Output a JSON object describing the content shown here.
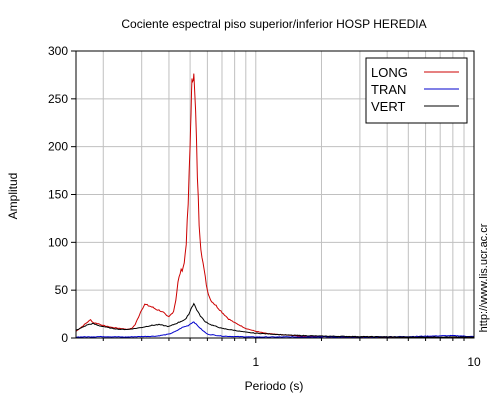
{
  "chart_data": {
    "type": "line",
    "title": "Cociente espectral piso superior/inferior  HOSP HEREDIA",
    "xlabel": "Periodo (s)",
    "ylabel": "Amplitud",
    "side_text": "http://www.lis.ucr.ac.cr",
    "x_scale": "log",
    "xlim": [
      0.15,
      10
    ],
    "ylim": [
      0,
      300
    ],
    "x_ticks": [
      {
        "value": 1,
        "label": "1"
      },
      {
        "value": 10,
        "label": "10"
      }
    ],
    "y_ticks": [
      {
        "value": 0,
        "label": "0"
      },
      {
        "value": 50,
        "label": "50"
      },
      {
        "value": 100,
        "label": "100"
      },
      {
        "value": 150,
        "label": "150"
      },
      {
        "value": 200,
        "label": "200"
      },
      {
        "value": 250,
        "label": "250"
      },
      {
        "value": 300,
        "label": "300"
      }
    ],
    "grid": true,
    "legend_position": "top-right",
    "series": [
      {
        "name": "LONG",
        "color": "#cc0000",
        "points": [
          [
            0.15,
            7
          ],
          [
            0.16,
            12
          ],
          [
            0.17,
            17
          ],
          [
            0.175,
            19
          ],
          [
            0.18,
            16
          ],
          [
            0.19,
            15
          ],
          [
            0.2,
            13
          ],
          [
            0.22,
            11
          ],
          [
            0.24,
            10
          ],
          [
            0.26,
            9
          ],
          [
            0.27,
            10
          ],
          [
            0.28,
            14
          ],
          [
            0.29,
            22
          ],
          [
            0.3,
            30
          ],
          [
            0.31,
            35
          ],
          [
            0.33,
            33
          ],
          [
            0.35,
            30
          ],
          [
            0.37,
            28
          ],
          [
            0.38,
            26
          ],
          [
            0.39,
            23
          ],
          [
            0.4,
            22
          ],
          [
            0.42,
            28
          ],
          [
            0.43,
            40
          ],
          [
            0.44,
            58
          ],
          [
            0.45,
            68
          ],
          [
            0.46,
            72
          ],
          [
            0.47,
            78
          ],
          [
            0.48,
            100
          ],
          [
            0.49,
            140
          ],
          [
            0.5,
            200
          ],
          [
            0.505,
            240
          ],
          [
            0.51,
            265
          ],
          [
            0.515,
            277
          ],
          [
            0.52,
            273
          ],
          [
            0.53,
            235
          ],
          [
            0.54,
            170
          ],
          [
            0.55,
            120
          ],
          [
            0.56,
            95
          ],
          [
            0.58,
            70
          ],
          [
            0.6,
            50
          ],
          [
            0.62,
            40
          ],
          [
            0.65,
            35
          ],
          [
            0.7,
            27
          ],
          [
            0.75,
            20
          ],
          [
            0.8,
            16
          ],
          [
            0.85,
            13
          ],
          [
            0.9,
            10
          ],
          [
            1.0,
            7
          ],
          [
            1.1,
            5
          ],
          [
            1.2,
            4
          ],
          [
            1.4,
            3
          ],
          [
            1.6,
            2
          ],
          [
            2.0,
            1.5
          ],
          [
            3,
            1
          ],
          [
            5,
            0.8
          ],
          [
            10,
            0.5
          ]
        ]
      },
      {
        "name": "TRAN",
        "color": "#0000cc",
        "points": [
          [
            0.15,
            1
          ],
          [
            0.2,
            1.5
          ],
          [
            0.25,
            1
          ],
          [
            0.3,
            1.5
          ],
          [
            0.35,
            2
          ],
          [
            0.4,
            4
          ],
          [
            0.43,
            7
          ],
          [
            0.46,
            11
          ],
          [
            0.49,
            13
          ],
          [
            0.51,
            16
          ],
          [
            0.52,
            17
          ],
          [
            0.54,
            13
          ],
          [
            0.57,
            8
          ],
          [
            0.6,
            4
          ],
          [
            0.7,
            2
          ],
          [
            0.8,
            1.5
          ],
          [
            1,
            1
          ],
          [
            2,
            1.2
          ],
          [
            3,
            1
          ],
          [
            5,
            1.5
          ],
          [
            8,
            2.5
          ],
          [
            10,
            1.5
          ]
        ]
      },
      {
        "name": "VERT",
        "color": "#000000",
        "points": [
          [
            0.15,
            8
          ],
          [
            0.16,
            11
          ],
          [
            0.17,
            14
          ],
          [
            0.18,
            15
          ],
          [
            0.19,
            13
          ],
          [
            0.2,
            12
          ],
          [
            0.22,
            10
          ],
          [
            0.24,
            9
          ],
          [
            0.26,
            9
          ],
          [
            0.28,
            10
          ],
          [
            0.3,
            11
          ],
          [
            0.33,
            13
          ],
          [
            0.36,
            14
          ],
          [
            0.4,
            12
          ],
          [
            0.43,
            15
          ],
          [
            0.46,
            18
          ],
          [
            0.48,
            20
          ],
          [
            0.5,
            28
          ],
          [
            0.51,
            33
          ],
          [
            0.52,
            36
          ],
          [
            0.53,
            32
          ],
          [
            0.55,
            25
          ],
          [
            0.58,
            18
          ],
          [
            0.62,
            14
          ],
          [
            0.7,
            10
          ],
          [
            0.8,
            8
          ],
          [
            0.9,
            6
          ],
          [
            1.0,
            5
          ],
          [
            1.2,
            4
          ],
          [
            1.4,
            3
          ],
          [
            2,
            2
          ],
          [
            3,
            1.5
          ],
          [
            5,
            1
          ],
          [
            10,
            1
          ]
        ]
      }
    ]
  }
}
